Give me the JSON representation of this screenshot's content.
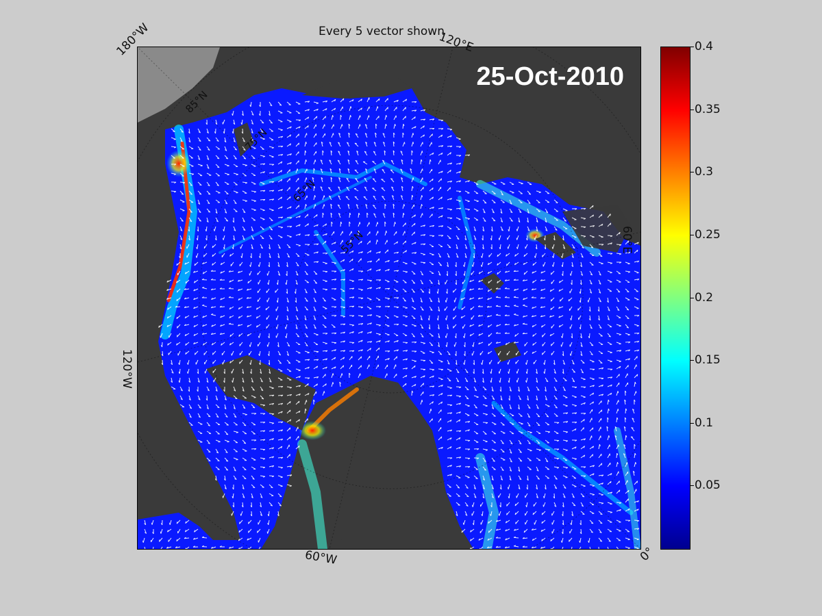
{
  "title": "Every 5 vector shown",
  "date": "25-Oct-2010",
  "longitude_labels": [
    "180°W",
    "120°E",
    "60°E",
    "0°",
    "60°W",
    "120°W"
  ],
  "latitude_labels": [
    "85°N",
    "75°N",
    "65°N",
    "55°N"
  ],
  "colorbar": {
    "ticks": [
      "0.4",
      "0.35",
      "0.3",
      "0.25",
      "0.2",
      "0.15",
      "0.1",
      "0.05"
    ],
    "range": [
      0,
      0.4
    ],
    "colormap": "jet"
  },
  "colors": {
    "background": "#cccccc",
    "land": "#3a3a3a",
    "ice_low": "#0000ff",
    "vector": "#ffffff"
  }
}
